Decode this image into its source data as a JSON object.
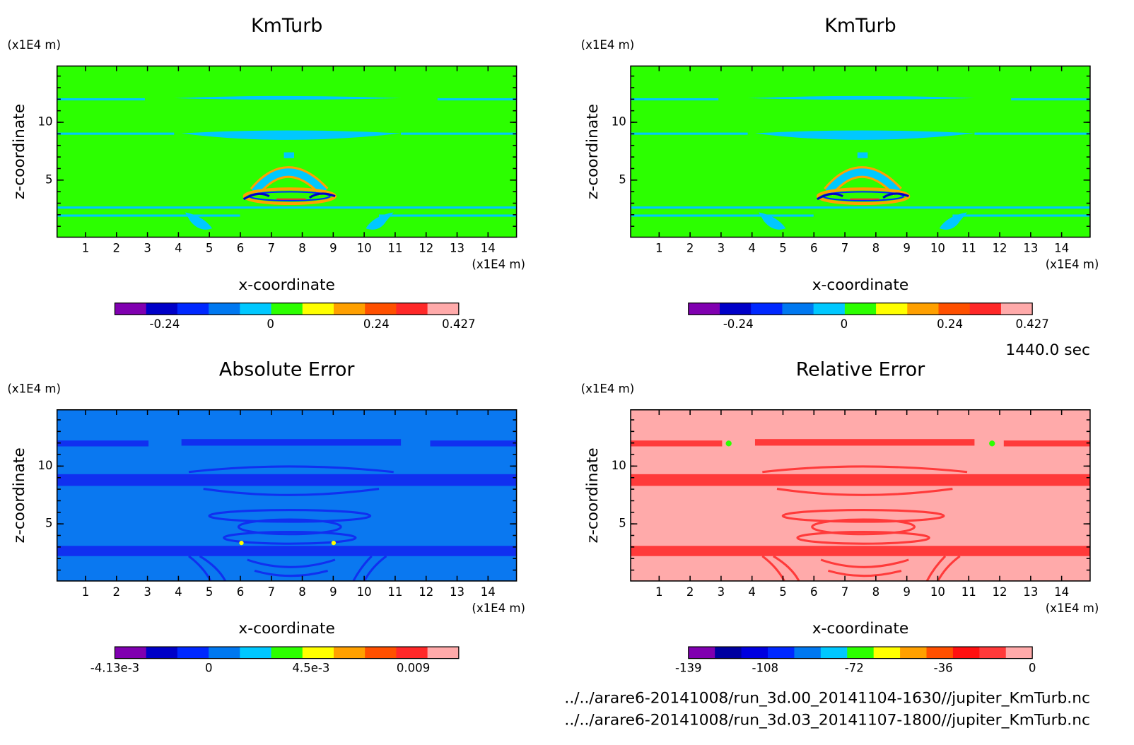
{
  "chart_data": [
    {
      "type": "contour",
      "title": "KmTurb",
      "xlabel": "x-coordinate",
      "ylabel": "z-coordinate",
      "x_unit": "(x1E4 m)",
      "y_unit": "(x1E4 m)",
      "xlim": [
        0.08,
        14.92
      ],
      "ylim": [
        0.06,
        14.87
      ],
      "xticks": [
        1,
        2,
        3,
        4,
        5,
        6,
        7,
        8,
        9,
        10,
        11,
        12,
        13,
        14
      ],
      "yticks": [
        5,
        10
      ],
      "yminorticks": [
        1,
        2,
        3,
        4,
        5,
        6,
        7,
        8,
        9,
        10,
        11,
        12,
        13,
        14
      ],
      "colorbar": {
        "clim": [
          -0.353,
          0.427
        ],
        "ticks": [
          -0.24,
          0,
          0.24,
          0.427
        ],
        "colors": [
          "#8000b0",
          "#0000c8",
          "#0028ff",
          "#0078f0",
          "#00c8ff",
          "#2cff00",
          "#ffff00",
          "#ffa000",
          "#ff5000",
          "#ff2828",
          "#ffaaaa"
        ]
      }
    },
    {
      "type": "contour",
      "title": "KmTurb",
      "xlabel": "x-coordinate",
      "ylabel": "z-coordinate",
      "x_unit": "(x1E4 m)",
      "y_unit": "(x1E4 m)",
      "xlim": [
        0.08,
        14.92
      ],
      "ylim": [
        0.06,
        14.87
      ],
      "xticks": [
        1,
        2,
        3,
        4,
        5,
        6,
        7,
        8,
        9,
        10,
        11,
        12,
        13,
        14
      ],
      "yticks": [
        5,
        10
      ],
      "yminorticks": [
        1,
        2,
        3,
        4,
        5,
        6,
        7,
        8,
        9,
        10,
        11,
        12,
        13,
        14
      ],
      "colorbar": {
        "clim": [
          -0.353,
          0.427
        ],
        "ticks": [
          -0.24,
          0,
          0.24,
          0.427
        ],
        "colors": [
          "#8000b0",
          "#0000c8",
          "#0028ff",
          "#0078f0",
          "#00c8ff",
          "#2cff00",
          "#ffff00",
          "#ffa000",
          "#ff5000",
          "#ff2828",
          "#ffaaaa"
        ]
      }
    },
    {
      "type": "contour",
      "title": "Absolute Error",
      "xlabel": "x-coordinate",
      "ylabel": "z-coordinate",
      "x_unit": "(x1E4 m)",
      "y_unit": "(x1E4 m)",
      "xlim": [
        0.08,
        14.92
      ],
      "ylim": [
        0.06,
        14.87
      ],
      "xticks": [
        1,
        2,
        3,
        4,
        5,
        6,
        7,
        8,
        9,
        10,
        11,
        12,
        13,
        14
      ],
      "yticks": [
        5,
        10
      ],
      "yminorticks": [
        1,
        2,
        3,
        4,
        5,
        6,
        7,
        8,
        9,
        10,
        11,
        12,
        13,
        14
      ],
      "colorbar": {
        "clim": [
          -0.00413,
          0.011
        ],
        "ticks": [
          {
            "value": -0.00413,
            "label": "-4.13e-3"
          },
          0,
          {
            "value": 0.0045,
            "label": "4.5e-3"
          },
          0.009
        ],
        "colors": [
          "#8000b0",
          "#0000c8",
          "#0028ff",
          "#0078f0",
          "#00c8ff",
          "#2cff00",
          "#ffff00",
          "#ffa000",
          "#ff5000",
          "#ff2828",
          "#ffaaaa"
        ]
      }
    },
    {
      "type": "contour",
      "title": "Relative Error",
      "xlabel": "x-coordinate",
      "ylabel": "z-coordinate",
      "x_unit": "(x1E4 m)",
      "y_unit": "(x1E4 m)",
      "xlim": [
        0.08,
        14.92
      ],
      "ylim": [
        0.06,
        14.87
      ],
      "xticks": [
        1,
        2,
        3,
        4,
        5,
        6,
        7,
        8,
        9,
        10,
        11,
        12,
        13,
        14
      ],
      "yticks": [
        5,
        10
      ],
      "yminorticks": [
        1,
        2,
        3,
        4,
        5,
        6,
        7,
        8,
        9,
        10,
        11,
        12,
        13,
        14
      ],
      "colorbar": {
        "clim": [
          -139,
          0
        ],
        "ticks": [
          -139,
          -108,
          -72,
          -36,
          0
        ],
        "colors": [
          "#8000b0",
          "#0000a0",
          "#0000e0",
          "#0028ff",
          "#0078f0",
          "#00c8ff",
          "#2cff00",
          "#ffff00",
          "#ffa000",
          "#ff5000",
          "#ff1010",
          "#ff3a3a",
          "#ffaaaa"
        ]
      }
    }
  ],
  "time_label": "1440.0 sec",
  "files": [
    "../../arare6-20141008/run_3d.00_20141104-1630//jupiter_KmTurb.nc",
    "../../arare6-20141008/run_3d.03_20141107-1800//jupiter_KmTurb.nc"
  ]
}
